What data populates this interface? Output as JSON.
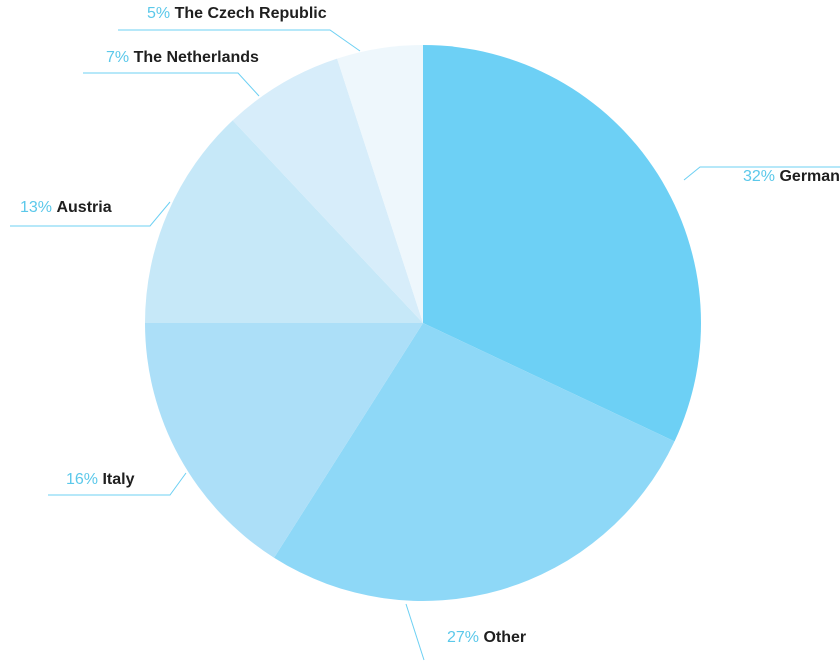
{
  "chart_data": {
    "type": "pie",
    "title": "",
    "slices": [
      {
        "label": "Germany",
        "value": 32,
        "percent_label": "32%",
        "color": "#6dd0f5"
      },
      {
        "label": "Other",
        "value": 27,
        "percent_label": "27%",
        "color": "#8ed8f7"
      },
      {
        "label": "Italy",
        "value": 16,
        "percent_label": "16%",
        "color": "#acdff8"
      },
      {
        "label": "Austria",
        "value": 13,
        "percent_label": "13%",
        "color": "#c6e8f8"
      },
      {
        "label": "The Netherlands",
        "value": 7,
        "percent_label": "7%",
        "color": "#d7edfa"
      },
      {
        "label": "The Czech Republic",
        "value": 5,
        "percent_label": "5%",
        "color": "#eef7fc"
      }
    ],
    "start_angle": "12 o'clock",
    "direction": "clockwise",
    "legend": "none",
    "label_style": "outside labels with leader lines",
    "accent_color": "#6dd0f3"
  }
}
